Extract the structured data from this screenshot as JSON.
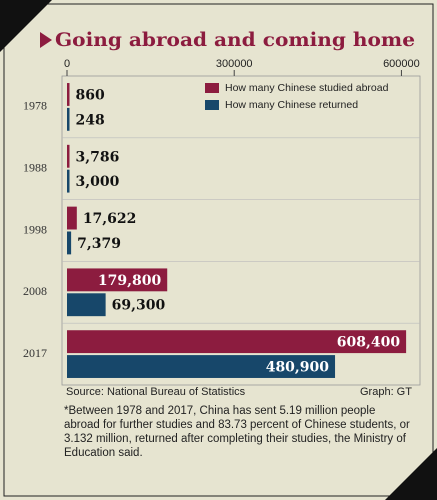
{
  "chart_data": {
    "type": "bar",
    "orientation": "horizontal",
    "title": "Going abroad and coming home",
    "categories": [
      "1978",
      "1988",
      "1998",
      "2008",
      "2017"
    ],
    "series": [
      {
        "name": "How many Chinese studied abroad",
        "color": "#8c1c3f",
        "values": [
          860,
          3786,
          17622,
          179800,
          608400
        ],
        "value_labels": [
          "860",
          "3,786",
          "17,622",
          "179,800",
          "608,400"
        ]
      },
      {
        "name": "How many Chinese returned",
        "color": "#17476a",
        "values": [
          248,
          3000,
          7379,
          69300,
          480900
        ],
        "value_labels": [
          "248",
          "3,000",
          "7,379",
          "69,300",
          "480,900"
        ]
      }
    ],
    "xlim": [
      0,
      610000
    ],
    "xticks": [
      0,
      300000,
      600000
    ],
    "legend": "upper right",
    "source": "Source: National Bureau of Statistics",
    "credit": "Graph: GT",
    "note": "*Between 1978 and 2017, China has sent 5.19 million people abroad for further studies and 83.73 percent of Chinese students, or 3.132 million, returned after completing their studies, the Ministry of Education said."
  }
}
